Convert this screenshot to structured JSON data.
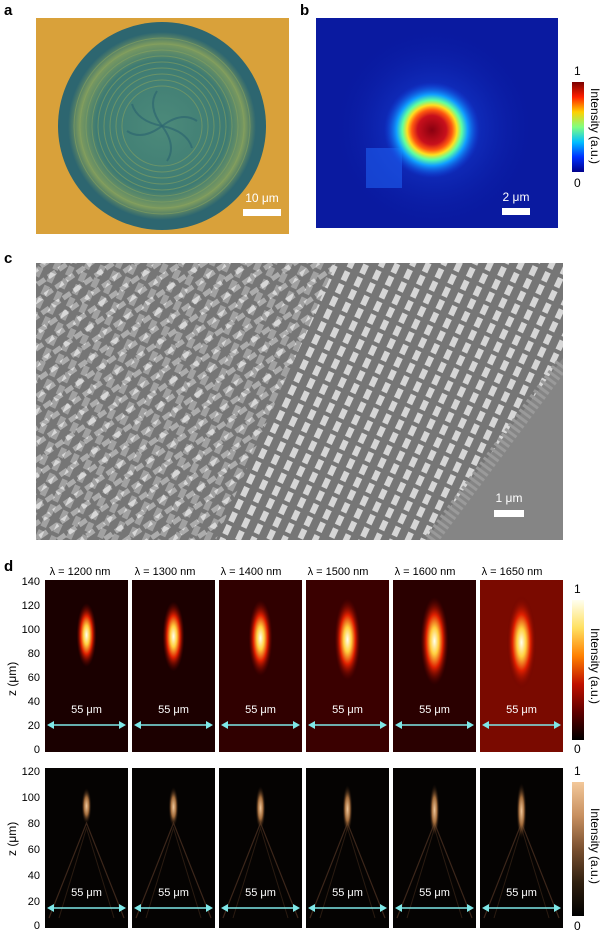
{
  "panels": {
    "a": {
      "label": "a",
      "scalebar": "10 μm"
    },
    "b": {
      "label": "b",
      "scalebar": "2 μm",
      "colorbar": {
        "title": "Intensity (a.u.)",
        "max": "1",
        "min": "0"
      }
    },
    "c": {
      "label": "c",
      "scalebar": "1 μm"
    },
    "d": {
      "label": "d",
      "wavelengths": [
        "λ = 1200 nm",
        "λ = 1300 nm",
        "λ = 1400 nm",
        "λ = 1500 nm",
        "λ = 1600 nm",
        "λ = 1650 nm"
      ],
      "arrow_label": "55 μm",
      "ylabel": "z (μm)",
      "top_yticks": [
        "140",
        "120",
        "100",
        "80",
        "60",
        "40",
        "20",
        "0"
      ],
      "bottom_yticks": [
        "120",
        "100",
        "80",
        "60",
        "40",
        "20",
        "0"
      ],
      "top_colorbar": {
        "title": "Intensity (a.u.)",
        "max": "1",
        "min": "0"
      },
      "bottom_colorbar": {
        "title": "Intensity (a.u.)",
        "max": "1",
        "min": "0"
      }
    }
  },
  "colors": {
    "gold": "#d9a13a",
    "teal": "#2f6a72",
    "jet_blue": "#1030d0",
    "hot_red": "#c8101c"
  }
}
